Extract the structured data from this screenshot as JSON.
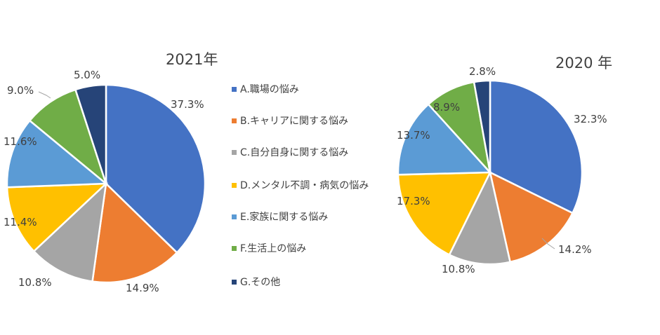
{
  "legend": [
    {
      "label": "A.職場の悩み",
      "color": "#4472c4"
    },
    {
      "label": "B.キャリアに関する悩み",
      "color": "#ed7d31"
    },
    {
      "label": "C.自分自身に関する悩み",
      "color": "#a5a5a5"
    },
    {
      "label": "D.メンタル不調・病気の悩み",
      "color": "#ffc000"
    },
    {
      "label": "E.家族に関する悩み",
      "color": "#5b9bd5"
    },
    {
      "label": "F.生活上の悩み",
      "color": "#70ad47"
    },
    {
      "label": "G.その他",
      "color": "#264478"
    }
  ],
  "chart_data": [
    {
      "type": "pie",
      "title": "2021年",
      "categories": [
        "A.職場の悩み",
        "B.キャリアに関する悩み",
        "C.自分自身に関する悩み",
        "D.メンタル不調・病気の悩み",
        "E.家族に関する悩み",
        "F.生活上の悩み",
        "G.その他"
      ],
      "values": [
        37.3,
        14.9,
        10.8,
        11.4,
        11.6,
        9.0,
        5.0
      ],
      "labels": [
        "37.3%",
        "14.9%",
        "10.8%",
        "11.4%",
        "11.6%",
        "9.0%",
        "5.0%"
      ]
    },
    {
      "type": "pie",
      "title": "2020 年",
      "categories": [
        "A.職場の悩み",
        "B.キャリアに関する悩み",
        "C.自分自身に関する悩み",
        "D.メンタル不調・病気の悩み",
        "E.家族に関する悩み",
        "F.生活上の悩み",
        "G.その他"
      ],
      "values": [
        32.3,
        14.2,
        10.8,
        17.3,
        13.7,
        8.9,
        2.8
      ],
      "labels": [
        "32.3%",
        "14.2%",
        "10.8%",
        "17.3%",
        "13.7%",
        "8.9%",
        "2.8%"
      ]
    }
  ]
}
